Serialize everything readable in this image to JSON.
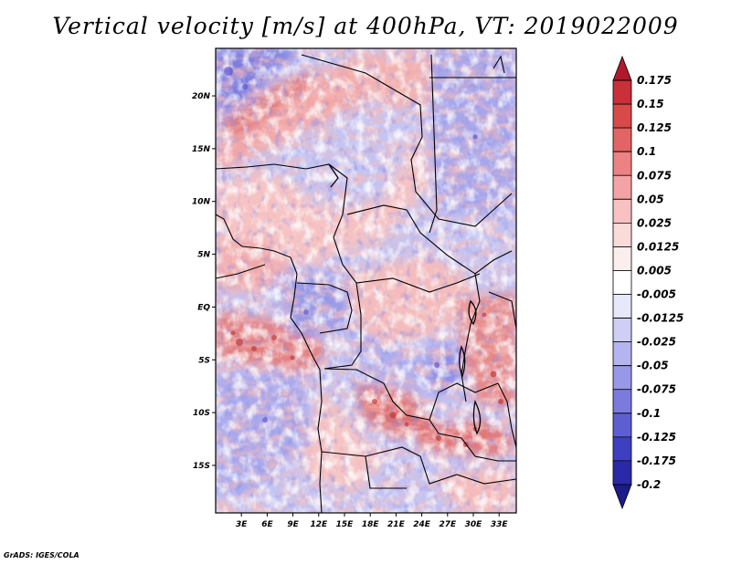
{
  "title": "Vertical velocity [m/s] at 400hPa, VT: 2019022009",
  "credit": "GrADS: IGES/COLA",
  "map": {
    "lat_range": [
      -19.5,
      24.5
    ],
    "lon_range": [
      0,
      35
    ],
    "lat_ticks": [
      {
        "value": 20,
        "label": "20N"
      },
      {
        "value": 15,
        "label": "15N"
      },
      {
        "value": 10,
        "label": "10N"
      },
      {
        "value": 5,
        "label": "5N"
      },
      {
        "value": 0,
        "label": "EQ"
      },
      {
        "value": -5,
        "label": "5S"
      },
      {
        "value": -10,
        "label": "10S"
      },
      {
        "value": -15,
        "label": "15S"
      }
    ],
    "lon_ticks": [
      {
        "value": 3,
        "label": "3E"
      },
      {
        "value": 6,
        "label": "6E"
      },
      {
        "value": 9,
        "label": "9E"
      },
      {
        "value": 12,
        "label": "12E"
      },
      {
        "value": 15,
        "label": "15E"
      },
      {
        "value": 18,
        "label": "18E"
      },
      {
        "value": 21,
        "label": "21E"
      },
      {
        "value": 24,
        "label": "24E"
      },
      {
        "value": 27,
        "label": "27E"
      },
      {
        "value": 30,
        "label": "30E"
      },
      {
        "value": 33,
        "label": "33E"
      }
    ]
  },
  "colorbar": {
    "levels": [
      "0.175",
      "0.15",
      "0.125",
      "0.1",
      "0.075",
      "0.05",
      "0.025",
      "0.0125",
      "0.005",
      "-0.005",
      "-0.0125",
      "-0.025",
      "-0.05",
      "-0.075",
      "-0.1",
      "-0.125",
      "-0.175",
      "-0.2"
    ],
    "colors": [
      "#b2182b",
      "#c9303a",
      "#d84a4a",
      "#e36464",
      "#ec8282",
      "#f3a3a3",
      "#f8c2c2",
      "#fbdada",
      "#fdeeee",
      "#ffffff",
      "#e8e8fb",
      "#cfcff6",
      "#b4b4f0",
      "#9898e8",
      "#7b7bdf",
      "#5e5ed3",
      "#3f3fc2",
      "#2a2aa8",
      "#1b1b8a"
    ]
  }
}
